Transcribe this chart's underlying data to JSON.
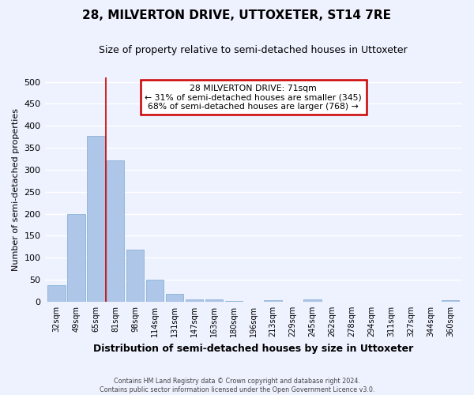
{
  "title": "28, MILVERTON DRIVE, UTTOXETER, ST14 7RE",
  "subtitle": "Size of property relative to semi-detached houses in Uttoxeter",
  "xlabel": "Distribution of semi-detached houses by size in Uttoxeter",
  "ylabel": "Number of semi-detached properties",
  "categories": [
    "32sqm",
    "49sqm",
    "65sqm",
    "81sqm",
    "98sqm",
    "114sqm",
    "131sqm",
    "147sqm",
    "163sqm",
    "180sqm",
    "196sqm",
    "213sqm",
    "229sqm",
    "245sqm",
    "262sqm",
    "278sqm",
    "294sqm",
    "311sqm",
    "327sqm",
    "344sqm",
    "360sqm"
  ],
  "values": [
    37,
    200,
    378,
    322,
    118,
    50,
    17,
    6,
    6,
    1,
    0,
    3,
    0,
    5,
    0,
    0,
    0,
    0,
    0,
    0,
    3
  ],
  "bar_color": "#aec6e8",
  "bar_edge_color": "#7aaad0",
  "property_line_x": 2.5,
  "property_sqm": 71,
  "pct_smaller": 31,
  "count_smaller": 345,
  "pct_larger": 68,
  "count_larger": 768,
  "annotation_text_line1": "28 MILVERTON DRIVE: 71sqm",
  "annotation_text_line2": "← 31% of semi-detached houses are smaller (345)",
  "annotation_text_line3": "68% of semi-detached houses are larger (768) →",
  "ylim": [
    0,
    510
  ],
  "yticks": [
    0,
    50,
    100,
    150,
    200,
    250,
    300,
    350,
    400,
    450,
    500
  ],
  "footnote1": "Contains HM Land Registry data © Crown copyright and database right 2024.",
  "footnote2": "Contains public sector information licensed under the Open Government Licence v3.0.",
  "background_color": "#eef2ff",
  "grid_color": "#ffffff",
  "annotation_box_color": "#ffffff",
  "annotation_box_edge": "#cc0000",
  "line_color": "#cc0000",
  "title_fontsize": 11,
  "subtitle_fontsize": 9
}
